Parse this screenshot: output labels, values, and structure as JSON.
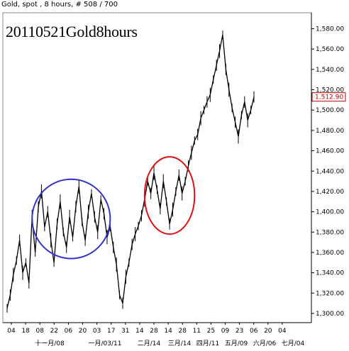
{
  "header": {
    "info_text": "Gold, spot , 8 hours, # 508 / 700",
    "title": "20110521Gold8hours"
  },
  "last_price": {
    "label": "1,512.90",
    "value": 1512.9,
    "color": "#c00000"
  },
  "colors": {
    "line": "#000000",
    "circle_blue": "#3333cc",
    "circle_red": "#dd1111",
    "axis": "#000000"
  },
  "chart_data": {
    "type": "line",
    "title": "20110521Gold8hours",
    "subtitle": "Gold, spot , 8 hours, # 508 / 700",
    "xlabel": "",
    "ylabel": "",
    "ylim": [
      1290,
      1592
    ],
    "y_axis_position": "right",
    "grid": false,
    "y_ticks": [
      {
        "value": 1300,
        "label": "1,300.00"
      },
      {
        "value": 1320,
        "label": "1,320.00"
      },
      {
        "value": 1340,
        "label": "1,340.00"
      },
      {
        "value": 1360,
        "label": "1,360.00"
      },
      {
        "value": 1380,
        "label": "1,380.00"
      },
      {
        "value": 1400,
        "label": "1,400.00"
      },
      {
        "value": 1420,
        "label": "1,420.00"
      },
      {
        "value": 1440,
        "label": "1,440.00"
      },
      {
        "value": 1460,
        "label": "1,460.00"
      },
      {
        "value": 1480,
        "label": "1,480.00"
      },
      {
        "value": 1500,
        "label": "1,500.00"
      },
      {
        "value": 1520,
        "label": "1,520.00"
      },
      {
        "value": 1540,
        "label": "1,540.00"
      },
      {
        "value": 1560,
        "label": "1,560.00"
      },
      {
        "value": 1580,
        "label": "1,580.00"
      }
    ],
    "x_day_labels": [
      "04",
      "18",
      "08",
      "22",
      "06",
      "20",
      "03",
      "17",
      "31",
      "14",
      "28",
      "14",
      "28",
      "11",
      "25",
      "09",
      "23",
      "06",
      "20",
      "04"
    ],
    "x_month_labels": [
      "十一月/08",
      "一月/03/11",
      "二月/14",
      "三月/14",
      "四月/11",
      "五月/09",
      "六月/06",
      "七月/04"
    ],
    "series": [
      {
        "values": [
          1305,
          1318,
          1338,
          1352,
          1372,
          1340,
          1350,
          1330,
          1395,
          1360,
          1405,
          1420,
          1385,
          1400,
          1372,
          1350,
          1388,
          1410,
          1380,
          1365,
          1395,
          1375,
          1405,
          1425,
          1390,
          1372,
          1400,
          1418,
          1395,
          1380,
          1412,
          1398,
          1375,
          1385,
          1365,
          1348,
          1318,
          1310,
          1336,
          1350,
          1368,
          1378,
          1386,
          1396,
          1412,
          1430,
          1418,
          1438,
          1422,
          1403,
          1430,
          1410,
          1388,
          1402,
          1420,
          1436,
          1418,
          1430,
          1445,
          1458,
          1470,
          1476,
          1492,
          1500,
          1508,
          1515,
          1530,
          1544,
          1558,
          1574,
          1540,
          1520,
          1502,
          1488,
          1474,
          1495,
          1508,
          1490,
          1500,
          1512.9
        ]
      }
    ],
    "annotations": [
      {
        "shape": "circle",
        "color": "blue",
        "x_start": 8,
        "x_end": 33,
        "y_low": 1354,
        "y_high": 1432
      },
      {
        "shape": "circle",
        "color": "red",
        "x_start": 44,
        "x_end": 60,
        "y_low": 1378,
        "y_high": 1454
      }
    ]
  }
}
